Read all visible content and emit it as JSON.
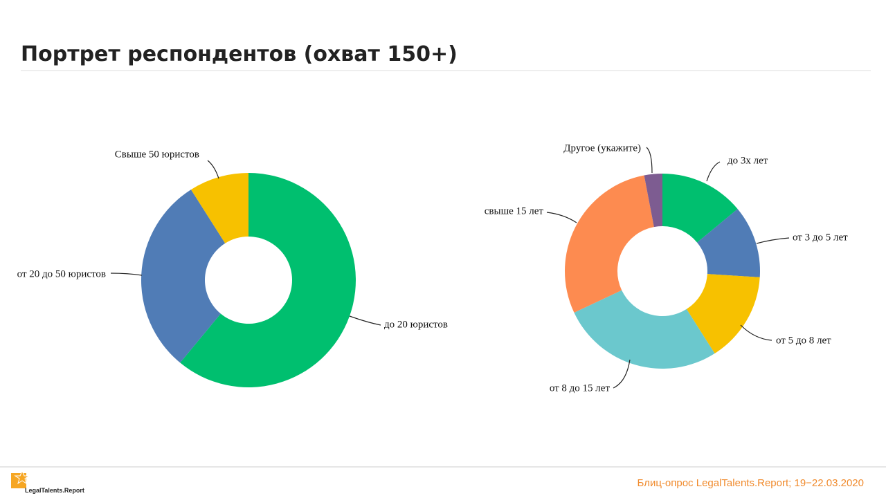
{
  "header": {
    "title": "Портрет респондентов (охват 150+)"
  },
  "chart_data": [
    {
      "type": "donut",
      "categories": [
        "до 20 юристов",
        "от 20 до 50 юристов",
        "Свыше 50 юристов"
      ],
      "values": [
        61,
        30,
        9
      ],
      "colors": [
        "#00bf6f",
        "#507cb6",
        "#f7c100"
      ]
    },
    {
      "type": "donut",
      "categories": [
        "до 3х лет",
        "от 3 до 5 лет",
        "от 5 до 8 лет",
        "от 8 до 15 лет",
        "свыше 15 лет",
        "Другое (укажите)"
      ],
      "values": [
        14,
        12,
        15,
        27,
        29,
        3
      ],
      "colors": [
        "#00bf6f",
        "#507cb6",
        "#f7c100",
        "#6bc8cd",
        "#fd8b50",
        "#7d5c91"
      ]
    }
  ],
  "footer": {
    "logo": "LegalTalents.Report",
    "note": "Блиц-опрос LegalTalents.Report; 19−22.03.2020"
  }
}
